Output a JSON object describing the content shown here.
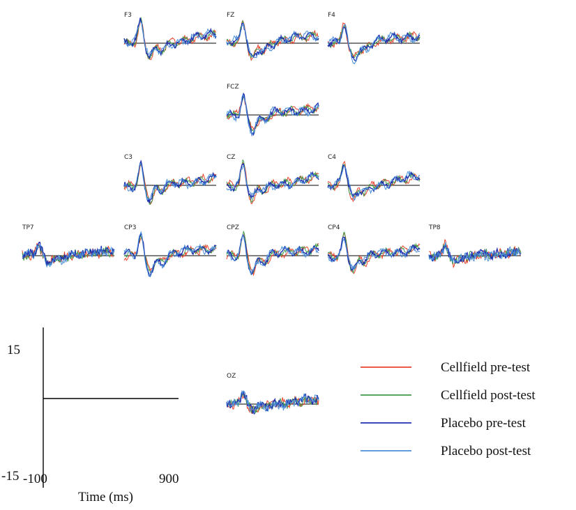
{
  "chart_data": {
    "type": "line",
    "x_range_ms": [
      -100,
      900
    ],
    "y_range": [
      -15,
      15
    ],
    "scale_bar": {
      "y_top_label": "15",
      "y_bottom_label": "-15",
      "x_left_label": "-100",
      "x_right_label": "900",
      "x_axis_label": "Time (ms)"
    },
    "series": [
      {
        "name": "Cellfield pre-test",
        "color": "#e8402a"
      },
      {
        "name": "Cellfield post-test",
        "color": "#3f9a4a"
      },
      {
        "name": "Placebo pre-test",
        "color": "#1f2fb0"
      },
      {
        "name": "Placebo post-test",
        "color": "#4a8fd8"
      }
    ],
    "channels": [
      "F3",
      "FZ",
      "F4",
      "FCZ",
      "C3",
      "CZ",
      "C4",
      "TP7",
      "CP3",
      "CPZ",
      "CP4",
      "TP8",
      "OZ"
    ]
  }
}
